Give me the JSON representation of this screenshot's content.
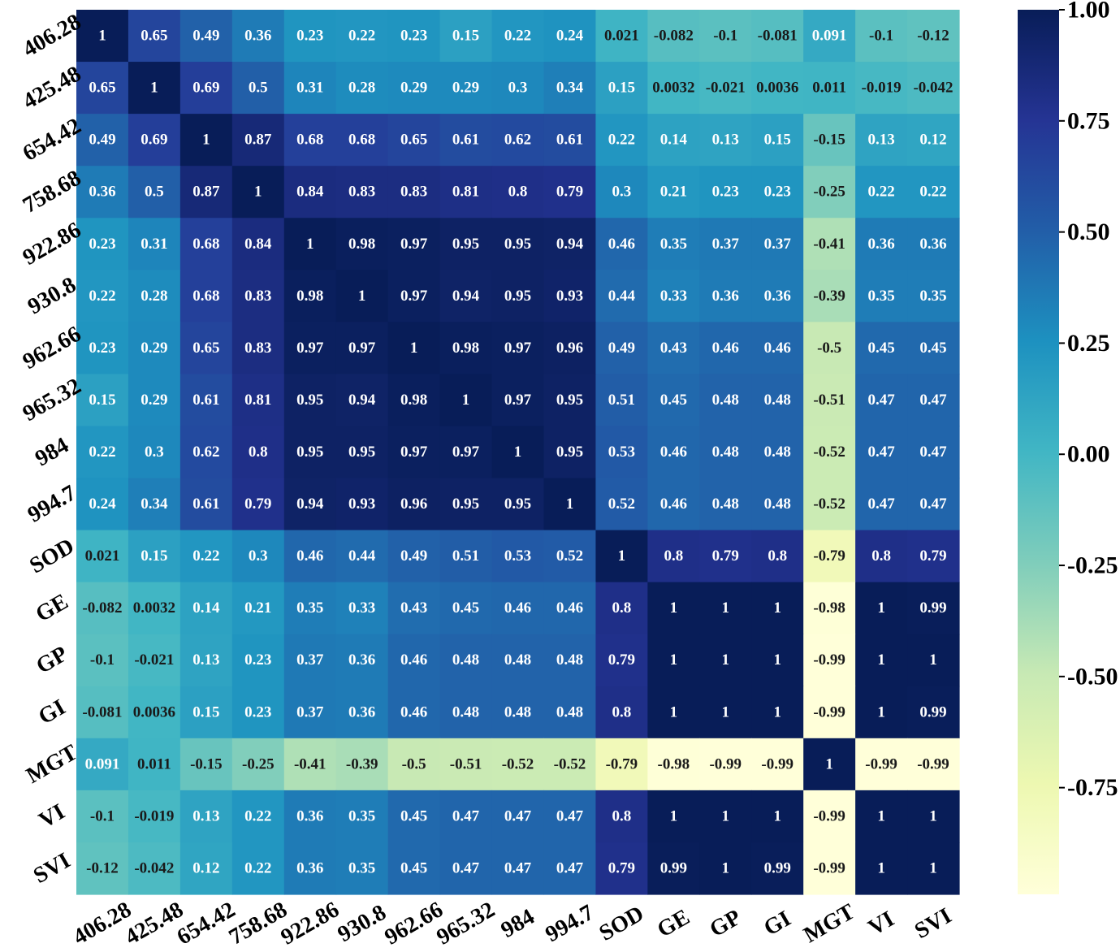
{
  "chart_data": {
    "type": "heatmap",
    "title": "",
    "xlabel": "",
    "ylabel": "",
    "labels": [
      "406.28",
      "425.48",
      "654.42",
      "758.68",
      "922.86",
      "930.8",
      "962.66",
      "965.32",
      "984",
      "994.7",
      "SOD",
      "GE",
      "GP",
      "GI",
      "MGT",
      "VI",
      "SVI"
    ],
    "matrix": [
      [
        "1",
        "0.65",
        "0.49",
        "0.36",
        "0.23",
        "0.22",
        "0.23",
        "0.15",
        "0.22",
        "0.24",
        "0.021",
        "-0.082",
        "-0.1",
        "-0.081",
        "0.091",
        "-0.1",
        "-0.12"
      ],
      [
        "0.65",
        "1",
        "0.69",
        "0.5",
        "0.31",
        "0.28",
        "0.29",
        "0.29",
        "0.3",
        "0.34",
        "0.15",
        "0.0032",
        "-0.021",
        "0.0036",
        "0.011",
        "-0.019",
        "-0.042"
      ],
      [
        "0.49",
        "0.69",
        "1",
        "0.87",
        "0.68",
        "0.68",
        "0.65",
        "0.61",
        "0.62",
        "0.61",
        "0.22",
        "0.14",
        "0.13",
        "0.15",
        "-0.15",
        "0.13",
        "0.12"
      ],
      [
        "0.36",
        "0.5",
        "0.87",
        "1",
        "0.84",
        "0.83",
        "0.83",
        "0.81",
        "0.8",
        "0.79",
        "0.3",
        "0.21",
        "0.23",
        "0.23",
        "-0.25",
        "0.22",
        "0.22"
      ],
      [
        "0.23",
        "0.31",
        "0.68",
        "0.84",
        "1",
        "0.98",
        "0.97",
        "0.95",
        "0.95",
        "0.94",
        "0.46",
        "0.35",
        "0.37",
        "0.37",
        "-0.41",
        "0.36",
        "0.36"
      ],
      [
        "0.22",
        "0.28",
        "0.68",
        "0.83",
        "0.98",
        "1",
        "0.97",
        "0.94",
        "0.95",
        "0.93",
        "0.44",
        "0.33",
        "0.36",
        "0.36",
        "-0.39",
        "0.35",
        "0.35"
      ],
      [
        "0.23",
        "0.29",
        "0.65",
        "0.83",
        "0.97",
        "0.97",
        "1",
        "0.98",
        "0.97",
        "0.96",
        "0.49",
        "0.43",
        "0.46",
        "0.46",
        "-0.5",
        "0.45",
        "0.45"
      ],
      [
        "0.15",
        "0.29",
        "0.61",
        "0.81",
        "0.95",
        "0.94",
        "0.98",
        "1",
        "0.97",
        "0.95",
        "0.51",
        "0.45",
        "0.48",
        "0.48",
        "-0.51",
        "0.47",
        "0.47"
      ],
      [
        "0.22",
        "0.3",
        "0.62",
        "0.8",
        "0.95",
        "0.95",
        "0.97",
        "0.97",
        "1",
        "0.95",
        "0.53",
        "0.46",
        "0.48",
        "0.48",
        "-0.52",
        "0.47",
        "0.47"
      ],
      [
        "0.24",
        "0.34",
        "0.61",
        "0.79",
        "0.94",
        "0.93",
        "0.96",
        "0.95",
        "0.95",
        "1",
        "0.52",
        "0.46",
        "0.48",
        "0.48",
        "-0.52",
        "0.47",
        "0.47"
      ],
      [
        "0.021",
        "0.15",
        "0.22",
        "0.3",
        "0.46",
        "0.44",
        "0.49",
        "0.51",
        "0.53",
        "0.52",
        "1",
        "0.8",
        "0.79",
        "0.8",
        "-0.79",
        "0.8",
        "0.79"
      ],
      [
        "-0.082",
        "0.0032",
        "0.14",
        "0.21",
        "0.35",
        "0.33",
        "0.43",
        "0.45",
        "0.46",
        "0.46",
        "0.8",
        "1",
        "1",
        "1",
        "-0.98",
        "1",
        "0.99"
      ],
      [
        "-0.1",
        "-0.021",
        "0.13",
        "0.23",
        "0.37",
        "0.36",
        "0.46",
        "0.48",
        "0.48",
        "0.48",
        "0.79",
        "1",
        "1",
        "1",
        "-0.99",
        "1",
        "1"
      ],
      [
        "-0.081",
        "0.0036",
        "0.15",
        "0.23",
        "0.37",
        "0.36",
        "0.46",
        "0.48",
        "0.48",
        "0.48",
        "0.8",
        "1",
        "1",
        "1",
        "-0.99",
        "1",
        "0.99"
      ],
      [
        "0.091",
        "0.011",
        "-0.15",
        "-0.25",
        "-0.41",
        "-0.39",
        "-0.5",
        "-0.51",
        "-0.52",
        "-0.52",
        "-0.79",
        "-0.98",
        "-0.99",
        "-0.99",
        "1",
        "-0.99",
        "-0.99"
      ],
      [
        "-0.1",
        "-0.019",
        "0.13",
        "0.22",
        "0.36",
        "0.35",
        "0.45",
        "0.47",
        "0.47",
        "0.47",
        "0.8",
        "1",
        "1",
        "1",
        "-0.99",
        "1",
        "1"
      ],
      [
        "-0.12",
        "-0.042",
        "0.12",
        "0.22",
        "0.36",
        "0.35",
        "0.45",
        "0.47",
        "0.47",
        "0.47",
        "0.79",
        "0.99",
        "1",
        "0.99",
        "-0.99",
        "1",
        "1"
      ]
    ],
    "colorbar": {
      "colormap": "YlGnBu",
      "vmin": -0.99,
      "vmax": 1.0,
      "ticks": [
        1.0,
        0.75,
        0.5,
        0.25,
        0.0,
        -0.25,
        -0.5,
        -0.75
      ],
      "tick_labels": [
        "1.00",
        "0.75",
        "0.50",
        "0.25",
        "0.00",
        "-0.25",
        "-0.50",
        "-0.75"
      ]
    },
    "colormap_stops": [
      "#ffffd9",
      "#edf8b1",
      "#c7e9b4",
      "#7fcdbb",
      "#41b6c4",
      "#1d91c0",
      "#225ea8",
      "#253494",
      "#081d58"
    ],
    "text_colors": {
      "light": "#ffffff",
      "dark": "#1a1a1a"
    },
    "grid": false
  }
}
